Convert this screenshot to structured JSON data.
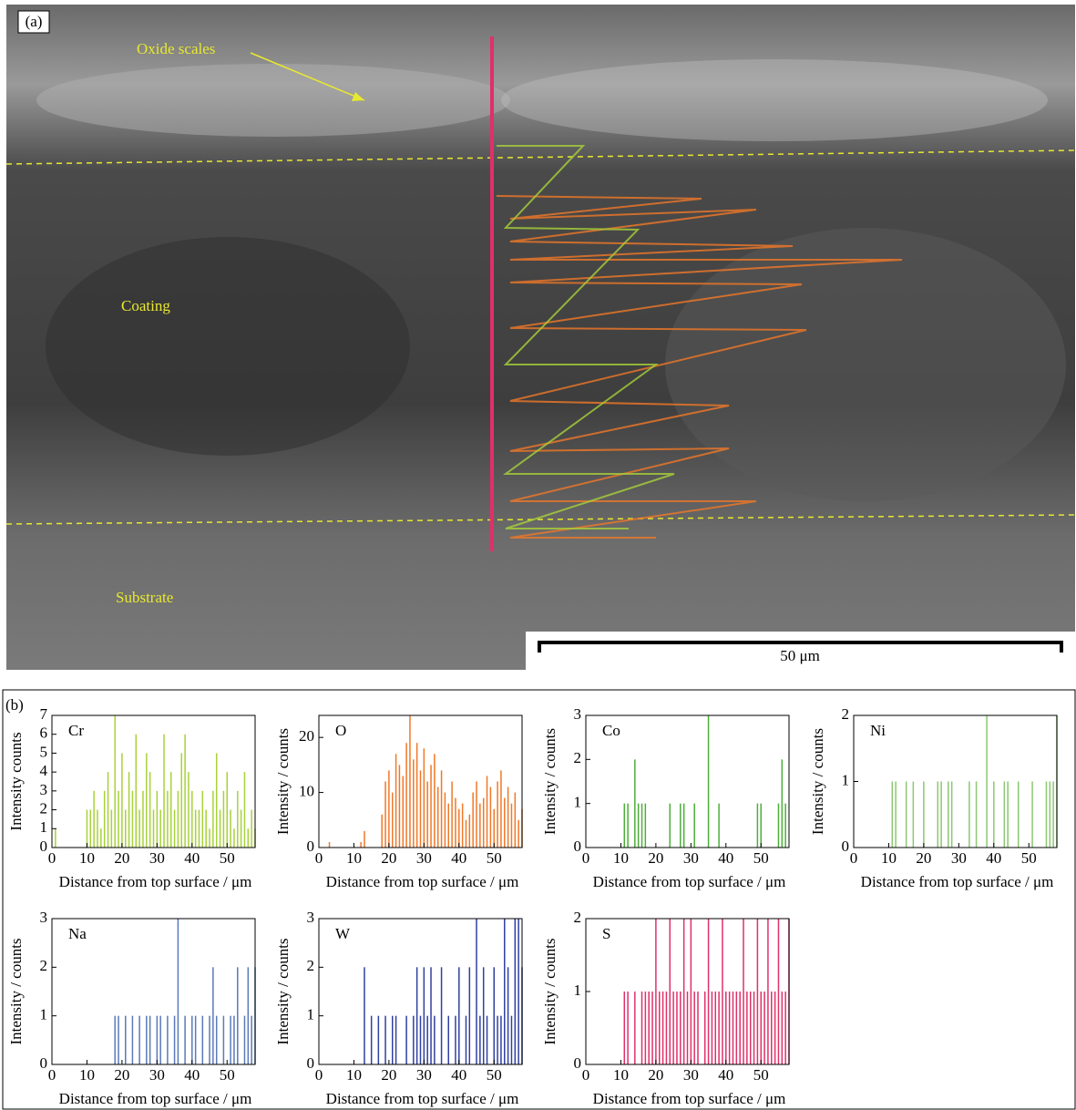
{
  "panel_a": {
    "label": "(a)",
    "annotations": [
      "Oxide scales",
      "Coating",
      "Substrate"
    ],
    "scale_bar": "50 μm"
  },
  "panel_b": {
    "label": "(b)"
  },
  "chart_data": [
    {
      "type": "bar",
      "label": "Cr",
      "color": "#a8d13a",
      "x_label": "Distance from top surface / μm",
      "y_label": "Intensity  counts",
      "x": [
        1,
        10,
        11,
        12,
        13,
        14,
        15,
        16,
        17,
        18,
        19,
        20,
        21,
        22,
        23,
        24,
        25,
        26,
        27,
        28,
        29,
        30,
        31,
        32,
        33,
        34,
        35,
        36,
        37,
        38,
        39,
        40,
        41,
        42,
        43,
        44,
        45,
        46,
        47,
        48,
        49,
        50,
        51,
        52,
        53,
        54,
        55,
        56,
        57,
        58
      ],
      "values": [
        1,
        2,
        2,
        3,
        2,
        1,
        3,
        4,
        2,
        7,
        3,
        5,
        2,
        4,
        3,
        6,
        2,
        3,
        5,
        4,
        2,
        3,
        2,
        6,
        3,
        4,
        2,
        3,
        5,
        6,
        4,
        3,
        2,
        2,
        3,
        2,
        1,
        3,
        5,
        2,
        3,
        4,
        2,
        1,
        3,
        2,
        4,
        1,
        2,
        1
      ],
      "xlim": [
        0,
        58
      ],
      "xticks": [
        0,
        10,
        20,
        30,
        40,
        50
      ],
      "ylim": [
        0,
        7
      ],
      "yticks": [
        0,
        1,
        2,
        3,
        4,
        5,
        6,
        7
      ]
    },
    {
      "type": "bar",
      "label": "O",
      "color": "#f07828",
      "x_label": "Distance from top surface / μm",
      "y_label": "Intensity / counts",
      "x": [
        3,
        12,
        13,
        18,
        19,
        20,
        21,
        22,
        23,
        24,
        25,
        26,
        27,
        28,
        29,
        30,
        31,
        32,
        33,
        34,
        35,
        36,
        37,
        38,
        39,
        40,
        41,
        42,
        43,
        44,
        45,
        46,
        47,
        48,
        49,
        50,
        51,
        52,
        53,
        54,
        55,
        56,
        57,
        58
      ],
      "values": [
        1,
        1,
        3,
        6,
        12,
        14,
        10,
        17,
        15,
        13,
        19,
        24,
        16,
        19,
        14,
        18,
        12,
        15,
        17,
        11,
        14,
        10,
        8,
        12,
        9,
        7,
        8,
        5,
        6,
        10,
        12,
        8,
        9,
        13,
        11,
        7,
        12,
        14,
        9,
        11,
        8,
        10,
        5,
        7
      ],
      "xlim": [
        0,
        58
      ],
      "xticks": [
        0,
        10,
        20,
        30,
        40,
        50
      ],
      "ylim": [
        0,
        24
      ],
      "yticks": [
        0,
        10,
        20
      ]
    },
    {
      "type": "bar",
      "label": "Co",
      "color": "#4caf3a",
      "x_label": "Distance from top surface / μm",
      "y_label": "Intensity / counts",
      "x": [
        11,
        12,
        14,
        15,
        16,
        17,
        24,
        27,
        28,
        31,
        35,
        38,
        49,
        50,
        55,
        56,
        57
      ],
      "values": [
        1,
        1,
        2,
        1,
        1,
        1,
        1,
        1,
        1,
        1,
        3,
        1,
        1,
        1,
        1,
        2,
        1
      ],
      "xlim": [
        0,
        58
      ],
      "xticks": [
        0,
        10,
        20,
        30,
        40,
        50
      ],
      "ylim": [
        0,
        3
      ],
      "yticks": [
        0,
        1,
        2,
        3
      ]
    },
    {
      "type": "bar",
      "label": "Ni",
      "color": "#8cc870",
      "x_label": "Distance from top surface / μm",
      "y_label": "Intensity / counts",
      "x": [
        11,
        12,
        15,
        17,
        20,
        24,
        25,
        27,
        28,
        33,
        35,
        38,
        40,
        43,
        44,
        47,
        51,
        55,
        56,
        57,
        58
      ],
      "values": [
        1,
        1,
        1,
        1,
        1,
        1,
        1,
        1,
        1,
        1,
        1,
        2,
        1,
        1,
        1,
        1,
        1,
        1,
        1,
        1,
        2
      ],
      "xlim": [
        0,
        58
      ],
      "xticks": [
        0,
        10,
        20,
        30,
        40,
        50
      ],
      "ylim": [
        0,
        2
      ],
      "yticks": [
        0,
        1,
        2
      ]
    },
    {
      "type": "bar",
      "label": "Na",
      "color": "#5a7ab8",
      "x_label": "Distance from top surface / μm",
      "y_label": "Intensity / counts",
      "x": [
        18,
        19,
        21,
        23,
        25,
        27,
        28,
        30,
        31,
        33,
        35,
        36,
        38,
        40,
        41,
        43,
        45,
        46,
        47,
        49,
        51,
        52,
        53,
        55,
        56,
        57,
        58
      ],
      "values": [
        1,
        1,
        1,
        1,
        1,
        1,
        1,
        1,
        1,
        1,
        1,
        3,
        1,
        1,
        1,
        1,
        1,
        2,
        1,
        1,
        1,
        1,
        2,
        1,
        2,
        1,
        2
      ],
      "xlim": [
        0,
        58
      ],
      "xticks": [
        0,
        10,
        20,
        30,
        40,
        50
      ],
      "ylim": [
        0,
        3
      ],
      "yticks": [
        0,
        1,
        2,
        3
      ]
    },
    {
      "type": "bar",
      "label": "W",
      "color": "#3040a0",
      "x_label": "Distance from top surface / μm",
      "y_label": "Intensity / counts",
      "x": [
        13,
        15,
        17,
        19,
        21,
        22,
        25,
        27,
        28,
        29,
        30,
        31,
        32,
        33,
        35,
        37,
        39,
        40,
        42,
        43,
        45,
        46,
        47,
        48,
        50,
        51,
        52,
        53,
        54,
        55,
        56,
        57,
        58
      ],
      "values": [
        2,
        1,
        1,
        1,
        1,
        1,
        1,
        1,
        2,
        1,
        2,
        1,
        2,
        1,
        2,
        1,
        1,
        2,
        1,
        2,
        3,
        1,
        2,
        1,
        2,
        1,
        1,
        3,
        2,
        1,
        3,
        3,
        2
      ],
      "xlim": [
        0,
        58
      ],
      "xticks": [
        0,
        10,
        20,
        30,
        40,
        50
      ],
      "ylim": [
        0,
        3
      ],
      "yticks": [
        0,
        1,
        2,
        3
      ]
    },
    {
      "type": "bar",
      "label": "S",
      "color": "#e0306a",
      "x_label": "Distance from top surface / μm",
      "y_label": "Intensity / counts",
      "x": [
        11,
        12,
        14,
        16,
        17,
        18,
        19,
        20,
        21,
        22,
        23,
        24,
        25,
        26,
        27,
        28,
        29,
        30,
        31,
        32,
        34,
        35,
        36,
        37,
        38,
        39,
        40,
        41,
        42,
        43,
        44,
        45,
        46,
        47,
        48,
        49,
        50,
        51,
        52,
        53,
        54,
        55,
        56,
        57,
        58
      ],
      "values": [
        1,
        1,
        1,
        1,
        1,
        1,
        1,
        2,
        1,
        1,
        1,
        2,
        1,
        1,
        1,
        2,
        1,
        2,
        1,
        1,
        1,
        2,
        1,
        1,
        1,
        2,
        1,
        1,
        1,
        1,
        1,
        2,
        1,
        1,
        1,
        2,
        1,
        1,
        2,
        1,
        1,
        2,
        1,
        1,
        2
      ],
      "xlim": [
        0,
        58
      ],
      "xticks": [
        0,
        10,
        20,
        30,
        40,
        50
      ],
      "ylim": [
        0,
        2
      ],
      "yticks": [
        0,
        1,
        2
      ]
    }
  ]
}
